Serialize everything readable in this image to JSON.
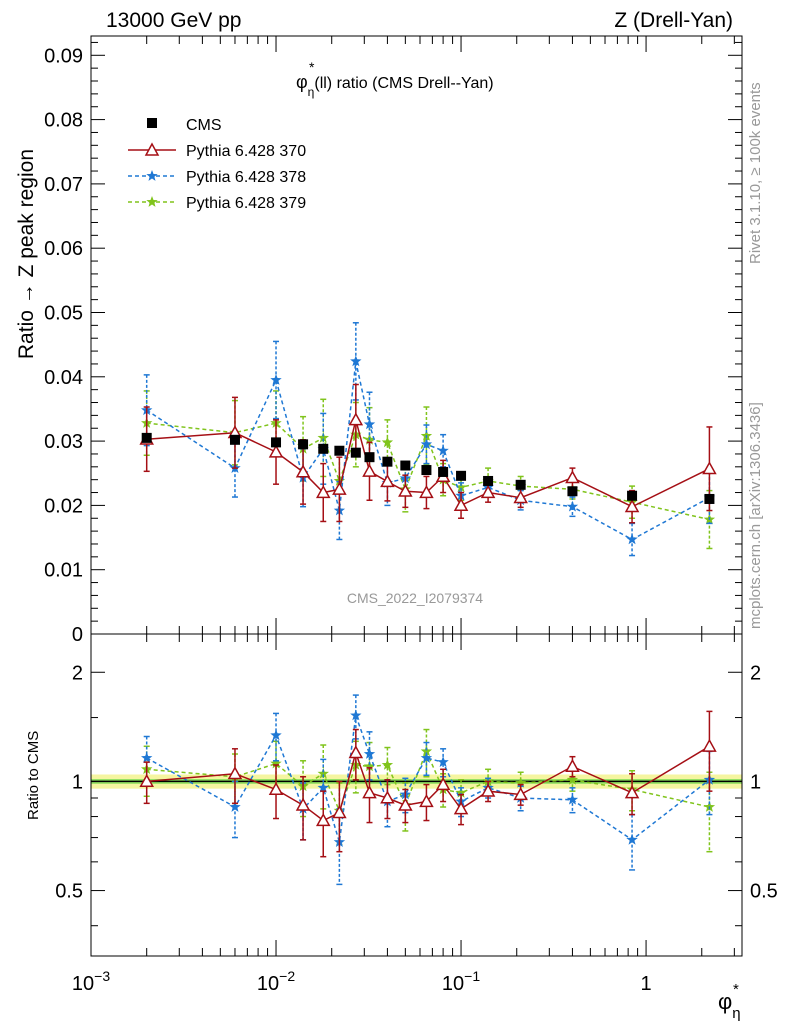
{
  "header": {
    "energy": "13000 GeV pp",
    "process": "Z (Drell-Yan)"
  },
  "side_labels": {
    "rivet": "Rivet 3.1.10, ≥ 100k events",
    "mcplots": "mcplots.cern.ch [arXiv:1306.3436]"
  },
  "colors": {
    "cms": "#000000",
    "p370": "#a50f15",
    "p378": "#1f78d4",
    "p379": "#80c41c",
    "band_outer": "#f5f5a0",
    "band_inner": "#90e060"
  },
  "chart_data": [
    {
      "type": "scatter",
      "panel": "main",
      "title": "φ*η(ll) ratio (CMS Drell--Yan)",
      "title_parts": {
        "phi": "φ",
        "star": "*",
        "eta": "η",
        "rest": "(ll) ratio (CMS Drell--Yan)"
      },
      "ylabel": "Ratio → Z peak region",
      "watermark": "CMS_2022_I2079374",
      "xscale": "log",
      "xlim": [
        0.001,
        3.3
      ],
      "ylim": [
        0,
        0.093
      ],
      "yticks": [
        0,
        0.01,
        0.02,
        0.03,
        0.04,
        0.05,
        0.06,
        0.07,
        0.08,
        0.09
      ],
      "ytick_labels": [
        "0",
        "0.01",
        "0.02",
        "0.03",
        "0.04",
        "0.05",
        "0.06",
        "0.07",
        "0.08",
        "0.09"
      ],
      "legend_position": "top-left",
      "x": [
        0.002,
        0.006,
        0.01,
        0.014,
        0.018,
        0.022,
        0.027,
        0.032,
        0.04,
        0.05,
        0.065,
        0.08,
        0.1,
        0.14,
        0.21,
        0.4,
        0.84,
        2.2
      ],
      "series": [
        {
          "name": "CMS",
          "style": "square",
          "values": [
            0.0305,
            0.0302,
            0.0298,
            0.0295,
            0.0288,
            0.0285,
            0.0282,
            0.0275,
            0.0268,
            0.0262,
            0.0255,
            0.0252,
            0.0246,
            0.0238,
            0.0232,
            0.0222,
            0.0215,
            0.021
          ],
          "errors": [
            0.0004,
            0.0004,
            0.0004,
            0.0004,
            0.0004,
            0.0004,
            0.0004,
            0.0004,
            0.0004,
            0.0004,
            0.0004,
            0.0004,
            0.0004,
            0.0004,
            0.0004,
            0.0004,
            0.0005,
            0.0006
          ]
        },
        {
          "name": "Pythia 6.428 370",
          "style": "triangle-solid",
          "values": [
            0.0303,
            0.0313,
            0.0283,
            0.0252,
            0.022,
            0.0225,
            0.0333,
            0.0253,
            0.0237,
            0.0222,
            0.022,
            0.0245,
            0.02,
            0.022,
            0.0212,
            0.0243,
            0.0198,
            0.0257
          ],
          "errors": [
            0.005,
            0.0055,
            0.005,
            0.005,
            0.0045,
            0.005,
            0.0055,
            0.0045,
            0.003,
            0.0025,
            0.0025,
            0.0025,
            0.002,
            0.0015,
            0.0015,
            0.0015,
            0.0025,
            0.0065
          ]
        },
        {
          "name": "Pythia 6.428 378",
          "style": "star-dashed",
          "values": [
            0.0348,
            0.0258,
            0.0395,
            0.0243,
            0.0288,
            0.0192,
            0.0424,
            0.0326,
            0.0235,
            0.0242,
            0.0295,
            0.0285,
            0.0215,
            0.0228,
            0.0208,
            0.0198,
            0.0147,
            0.0212
          ],
          "errors": [
            0.0055,
            0.0045,
            0.006,
            0.0045,
            0.0055,
            0.0045,
            0.006,
            0.005,
            0.0035,
            0.0025,
            0.003,
            0.0025,
            0.002,
            0.0015,
            0.0015,
            0.0015,
            0.0025,
            0.004
          ]
        },
        {
          "name": "Pythia 6.428 379",
          "style": "star-dashed",
          "values": [
            0.0328,
            0.0313,
            0.0328,
            0.0288,
            0.0305,
            0.0238,
            0.031,
            0.0302,
            0.0298,
            0.0225,
            0.0308,
            0.024,
            0.0228,
            0.0238,
            0.023,
            0.0225,
            0.0205,
            0.0178
          ],
          "errors": [
            0.005,
            0.005,
            0.005,
            0.005,
            0.006,
            0.0045,
            0.005,
            0.005,
            0.0035,
            0.0035,
            0.0045,
            0.0025,
            0.002,
            0.002,
            0.0015,
            0.0015,
            0.0025,
            0.0045
          ]
        }
      ]
    },
    {
      "type": "scatter",
      "panel": "ratio",
      "ylabel": "Ratio to CMS",
      "xlabel": "φ*η",
      "xlabel_parts": {
        "phi": "φ",
        "star": "*",
        "eta": "η"
      },
      "xscale": "log",
      "xlim": [
        0.001,
        3.3
      ],
      "xticks": [
        0.001,
        0.01,
        0.1,
        1
      ],
      "xtick_labels": [
        {
          "base": "10",
          "exp": "−3"
        },
        {
          "base": "10",
          "exp": "−2"
        },
        {
          "base": "10",
          "exp": "−1"
        },
        {
          "base": "1",
          "exp": ""
        }
      ],
      "yscale": "log",
      "ylim": [
        0.33,
        2.55
      ],
      "yticks": [
        0.5,
        1,
        2
      ],
      "ytick_labels": [
        "0.5",
        "1",
        "2"
      ],
      "band": {
        "outer": [
          0.955,
          1.045
        ],
        "inner": [
          0.985,
          1.015
        ]
      },
      "x": [
        0.002,
        0.006,
        0.01,
        0.014,
        0.018,
        0.022,
        0.027,
        0.032,
        0.04,
        0.05,
        0.065,
        0.08,
        0.1,
        0.14,
        0.21,
        0.4,
        0.84,
        2.2
      ],
      "series": [
        {
          "name": "Pythia 6.428 370",
          "style": "triangle-solid",
          "values": [
            1.0,
            1.05,
            0.95,
            0.86,
            0.78,
            0.82,
            1.2,
            0.93,
            0.9,
            0.86,
            0.88,
            0.98,
            0.84,
            0.94,
            0.92,
            1.1,
            0.93,
            1.25
          ],
          "errors": [
            0.13,
            0.18,
            0.16,
            0.17,
            0.16,
            0.18,
            0.19,
            0.16,
            0.11,
            0.09,
            0.1,
            0.1,
            0.08,
            0.06,
            0.06,
            0.07,
            0.12,
            0.31
          ]
        },
        {
          "name": "Pythia 6.428 378",
          "style": "star-dashed",
          "values": [
            1.16,
            0.85,
            1.34,
            0.84,
            0.96,
            0.68,
            1.52,
            1.19,
            0.88,
            0.92,
            1.16,
            1.13,
            0.88,
            0.96,
            0.9,
            0.89,
            0.69,
            1.01
          ],
          "errors": [
            0.17,
            0.15,
            0.2,
            0.15,
            0.19,
            0.16,
            0.21,
            0.18,
            0.13,
            0.1,
            0.12,
            0.1,
            0.08,
            0.06,
            0.07,
            0.07,
            0.12,
            0.2
          ]
        },
        {
          "name": "Pythia 6.428 379",
          "style": "star-dashed",
          "values": [
            1.08,
            1.03,
            1.12,
            0.97,
            1.05,
            0.83,
            1.11,
            1.1,
            1.11,
            0.86,
            1.21,
            0.95,
            0.93,
            1.0,
            0.99,
            1.01,
            0.95,
            0.85
          ],
          "errors": [
            0.17,
            0.16,
            0.17,
            0.17,
            0.21,
            0.16,
            0.18,
            0.18,
            0.13,
            0.13,
            0.18,
            0.1,
            0.08,
            0.08,
            0.07,
            0.07,
            0.12,
            0.21
          ]
        }
      ]
    }
  ]
}
